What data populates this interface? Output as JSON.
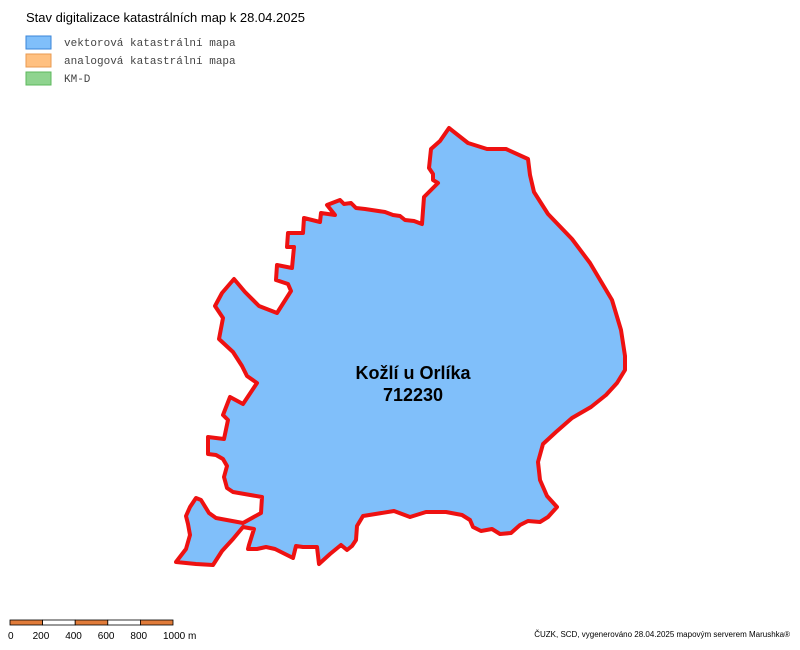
{
  "title": "Stav digitalizace katastrálních map k 28.04.2025",
  "legend": [
    {
      "label": "vektorová katastrální mapa",
      "color": "#80bffa",
      "border": "#3a86d8"
    },
    {
      "label": "analogová katastrální mapa",
      "color": "#ffc080",
      "border": "#e89a50"
    },
    {
      "label": "KM-D",
      "color": "#8fd48f",
      "border": "#5cb85c"
    }
  ],
  "area": {
    "name": "Kožlí u Orlíka",
    "code": "712230"
  },
  "scale_bar": {
    "labels": [
      "0",
      "200",
      "400",
      "600",
      "800",
      "1000 m"
    ]
  },
  "credit": "ČUZK, SCD, vygenerováno 28.04.2025 mapovým serverem Marushka®"
}
